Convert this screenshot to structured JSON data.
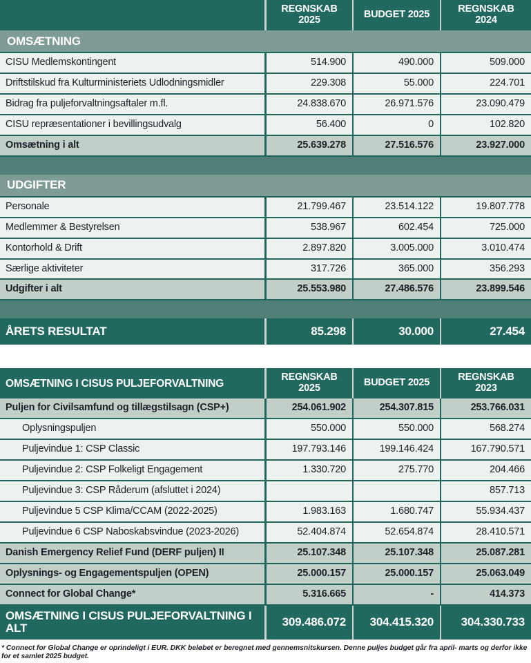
{
  "colors": {
    "teal_dark": "#21695F",
    "teal_gap": "#508078",
    "band": "#7F9B96",
    "sage": "#C2CFC9",
    "row": "#EDF1F0",
    "bdr": "#1F675D",
    "div_light": "#C9D2D0",
    "ink": "#1C2128"
  },
  "t1": {
    "header": {
      "c1": "REGNSKAB 2025",
      "c2": "BUDGET 2025",
      "c3": "REGNSKAB 2024"
    },
    "omsaetning": {
      "title": "OMSÆTNING",
      "rows": [
        {
          "label": "CISU Medlemskontingent",
          "v1": "514.900",
          "v2": "490.000",
          "v3": "509.000"
        },
        {
          "label": "Driftstilskud fra Kulturministeriets Udlodningsmidler",
          "v1": "229.308",
          "v2": "55.000",
          "v3": "224.701"
        },
        {
          "label": "Bidrag fra puljeforvaltningsaftaler m.fl.",
          "v1": "24.838.670",
          "v2": "26.971.576",
          "v3": "23.090.479"
        },
        {
          "label": "CISU repræsentationer i bevillingsudvalg",
          "v1": "56.400",
          "v2": "0",
          "v3": "102.820"
        }
      ],
      "total": {
        "label": "Omsætning i alt",
        "v1": "25.639.278",
        "v2": "27.516.576",
        "v3": "23.927.000"
      }
    },
    "udgifter": {
      "title": "UDGIFTER",
      "rows": [
        {
          "label": "Personale",
          "v1": "21.799.467",
          "v2": "23.514.122",
          "v3": "19.807.778"
        },
        {
          "label": "Medlemmer & Bestyrelsen",
          "v1": "538.967",
          "v2": "602.454",
          "v3": "725.000"
        },
        {
          "label": "Kontorhold & Drift",
          "v1": "2.897.820",
          "v2": "3.005.000",
          "v3": "3.010.474"
        },
        {
          "label": "Særlige aktiviteter",
          "v1": "317.726",
          "v2": "365.000",
          "v3": "356.293"
        }
      ],
      "total": {
        "label": "Udgifter i alt",
        "v1": "25.553.980",
        "v2": "27.486.576",
        "v3": "23.899.546"
      }
    },
    "result": {
      "label": "ÅRETS RESULTAT",
      "v1": "85.298",
      "v2": "30.000",
      "v3": "27.454"
    }
  },
  "t2": {
    "title": "OMSÆTNING I CISUS PULJEFORVALTNING",
    "header": {
      "c1": "REGNSKAB 2025",
      "c2": "BUDGET 2025",
      "c3": "REGNSKAB 2023"
    },
    "rows": [
      {
        "label": "Puljen for Civilsamfund og tillægstilsagn (CSP+)",
        "v1": "254.061.902",
        "v2": "254.307.815",
        "v3": "253.766.031"
      },
      {
        "label": "Oplysningspuljen",
        "v1": "550.000",
        "v2": "550.000",
        "v3": "568.274"
      },
      {
        "label": "Puljevindue 1: CSP Classic",
        "v1": "197.793.146",
        "v2": "199.146.424",
        "v3": "167.790.571"
      },
      {
        "label": "Puljevindue 2: CSP Folkeligt Engagement",
        "v1": "1.330.720",
        "v2": "275.770",
        "v3": "204.466"
      },
      {
        "label": "Puljevindue 3: CSP Råderum (afsluttet i 2024)",
        "v1": "",
        "v2": "",
        "v3": "857.713"
      },
      {
        "label": "Puljevindue 5 CSP Klima/CCAM (2022-2025)",
        "v1": "1.983.163",
        "v2": "1.680.747",
        "v3": "55.934.437"
      },
      {
        "label": "Puljevindue 6 CSP Naboskabsvindue (2023-2026)",
        "v1": "52.404.874",
        "v2": "52.654.874",
        "v3": "28.410.571"
      },
      {
        "label": "Danish Emergency Relief Fund (DERF puljen) II",
        "v1": "25.107.348",
        "v2": "25.107.348",
        "v3": "25.087.281"
      },
      {
        "label": "Oplysnings- og Engagementspuljen (OPEN)",
        "v1": "25.000.157",
        "v2": "25.000.157",
        "v3": "25.063.049"
      },
      {
        "label": "Connect for Global Change*",
        "v1": "5.316.665",
        "v2": "-",
        "v3": "414.373"
      }
    ],
    "total": {
      "label": "OMSÆTNING I CISUS PULJEFORVALTNING I ALT",
      "v1": "309.486.072",
      "v2": "304.415.320",
      "v3": "304.330.733"
    }
  },
  "footnote": {
    "text": "* Connect for Global Change er oprindeligt i EUR. DKK beløbet er beregnet med gennemsnitskursen.  Denne puljes budget går fra april- marts og derfor ikke for et samlet 2025 budget."
  }
}
